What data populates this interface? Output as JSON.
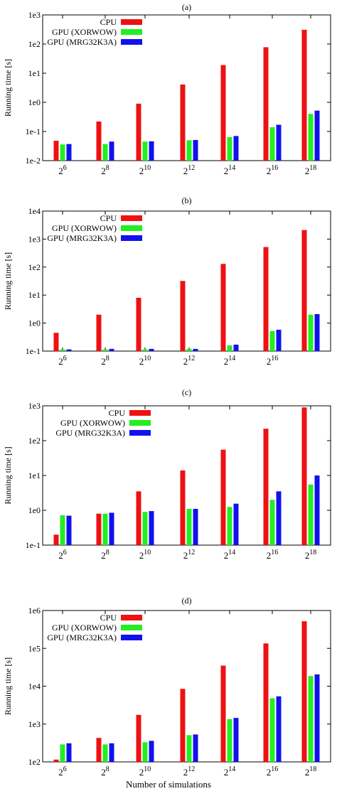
{
  "figure": {
    "xlabel": "Number of simulations"
  },
  "colors": {
    "CPU": "#ee1111",
    "GPU (XORWOW)": "#22ee22",
    "GPU (MRG32K3A)": "#1111ee"
  },
  "chart_data": [
    {
      "type": "bar",
      "panel_label": "(a)",
      "ylabel": "Running time [s]",
      "yscale": "log",
      "ylim": [
        0.01,
        1000
      ],
      "ytick_labels": [
        "1e-2",
        "1e-1",
        "1e0",
        "1e1",
        "1e2",
        "1e3"
      ],
      "categories": [
        "2^6",
        "2^8",
        "2^10",
        "2^12",
        "2^14",
        "2^16",
        "2^18"
      ],
      "legend_position": "top-left",
      "series": [
        {
          "name": "CPU",
          "color": "#ee1111",
          "values": [
            0.048,
            0.22,
            0.9,
            4.1,
            19,
            78,
            310
          ]
        },
        {
          "name": "GPU (XORWOW)",
          "color": "#22ee22",
          "values": [
            0.036,
            0.037,
            0.045,
            0.05,
            0.064,
            0.14,
            0.4
          ]
        },
        {
          "name": "GPU (MRG32K3A)",
          "color": "#1111ee",
          "values": [
            0.037,
            0.045,
            0.046,
            0.051,
            0.07,
            0.17,
            0.52
          ]
        }
      ]
    },
    {
      "type": "bar",
      "panel_label": "(b)",
      "ylabel": "Running time [s]",
      "yscale": "log",
      "ylim": [
        0.1,
        10000
      ],
      "ytick_labels": [
        "1e-1",
        "1e0",
        "1e1",
        "1e2",
        "1e3",
        "1e4"
      ],
      "categories": [
        "2^6",
        "2^8",
        "2^10",
        "2^12",
        "2^14",
        "2^16",
        ""
      ],
      "legend_position": "top-left",
      "series": [
        {
          "name": "CPU",
          "color": "#ee1111",
          "values": [
            0.45,
            2.0,
            8.0,
            32,
            130,
            520,
            2100
          ]
        },
        {
          "name": "GPU (XORWOW)",
          "color": "#22ee22",
          "values": [
            0.115,
            0.115,
            0.115,
            0.12,
            0.16,
            0.52,
            2.0
          ]
        },
        {
          "name": "GPU (MRG32K3A)",
          "color": "#1111ee",
          "values": [
            0.115,
            0.12,
            0.12,
            0.12,
            0.17,
            0.58,
            2.1
          ]
        }
      ]
    },
    {
      "type": "bar",
      "panel_label": "(c)",
      "ylabel": "Running time [s]",
      "yscale": "log",
      "ylim": [
        0.1,
        1000
      ],
      "ytick_labels": [
        "1e-1",
        "1e0",
        "1e1",
        "1e2",
        "1e3"
      ],
      "categories": [
        "2^6",
        "2^8",
        "2^10",
        "2^12",
        "2^14",
        "2^16",
        "2^18"
      ],
      "legend_position": "top-right",
      "series": [
        {
          "name": "CPU",
          "color": "#ee1111",
          "values": [
            0.2,
            0.8,
            3.5,
            14,
            55,
            220,
            900
          ]
        },
        {
          "name": "GPU (XORWOW)",
          "color": "#22ee22",
          "values": [
            0.72,
            0.8,
            0.9,
            1.1,
            1.25,
            2.0,
            5.5
          ]
        },
        {
          "name": "GPU (MRG32K3A)",
          "color": "#1111ee",
          "values": [
            0.7,
            0.85,
            0.95,
            1.1,
            1.55,
            3.5,
            10
          ]
        }
      ]
    },
    {
      "type": "bar",
      "panel_label": "(d)",
      "ylabel": "Running time [s]",
      "yscale": "log",
      "ylim": [
        100,
        1000000
      ],
      "ytick_labels": [
        "1e2",
        "1e3",
        "1e4",
        "1e5",
        "1e6"
      ],
      "categories": [
        "2^6",
        "2^8",
        "2^10",
        "2^12",
        "2^14",
        "2^16",
        "2^18"
      ],
      "legend_position": "top-left",
      "series": [
        {
          "name": "CPU",
          "color": "#ee1111",
          "values": [
            115,
            430,
            1750,
            8500,
            35000,
            135000,
            520000
          ]
        },
        {
          "name": "GPU (XORWOW)",
          "color": "#22ee22",
          "values": [
            290,
            290,
            330,
            510,
            1350,
            4800,
            18500
          ]
        },
        {
          "name": "GPU (MRG32K3A)",
          "color": "#1111ee",
          "values": [
            310,
            310,
            360,
            530,
            1450,
            5400,
            20500
          ]
        }
      ]
    }
  ]
}
